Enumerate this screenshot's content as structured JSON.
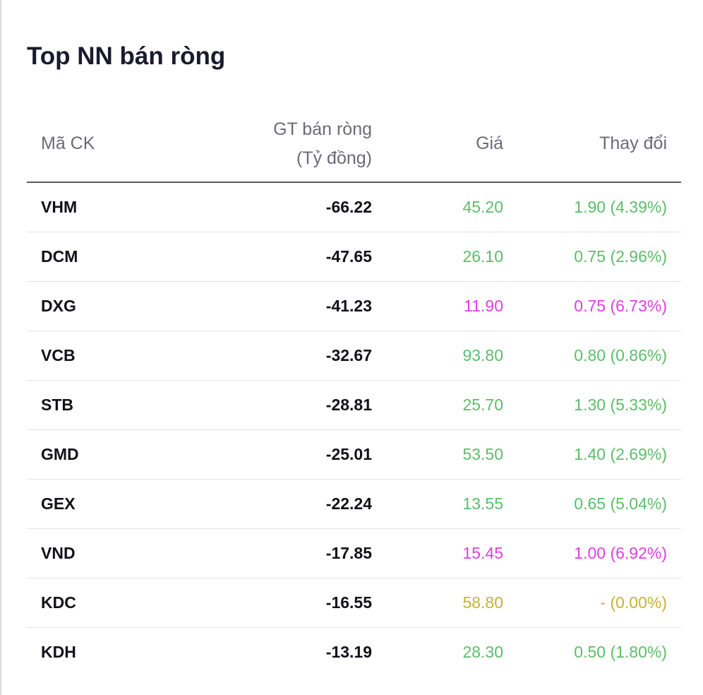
{
  "title": "Top NN bán ròng",
  "columns": {
    "code": "Mã CK",
    "value_line1": "GT bán ròng",
    "value_line2": "(Tỷ đồng)",
    "price": "Giá",
    "change": "Thay đổi"
  },
  "colors": {
    "up": "#5cbd6a",
    "ceiling": "#e03ee3",
    "reference": "#c6b32f"
  },
  "rows": [
    {
      "code": "VHM",
      "value": "-66.22",
      "price": "45.20",
      "change": "1.90 (4.39%)",
      "status": "up"
    },
    {
      "code": "DCM",
      "value": "-47.65",
      "price": "26.10",
      "change": "0.75 (2.96%)",
      "status": "up"
    },
    {
      "code": "DXG",
      "value": "-41.23",
      "price": "11.90",
      "change": "0.75 (6.73%)",
      "status": "ceil"
    },
    {
      "code": "VCB",
      "value": "-32.67",
      "price": "93.80",
      "change": "0.80 (0.86%)",
      "status": "up"
    },
    {
      "code": "STB",
      "value": "-28.81",
      "price": "25.70",
      "change": "1.30 (5.33%)",
      "status": "up"
    },
    {
      "code": "GMD",
      "value": "-25.01",
      "price": "53.50",
      "change": "1.40 (2.69%)",
      "status": "up"
    },
    {
      "code": "GEX",
      "value": "-22.24",
      "price": "13.55",
      "change": "0.65 (5.04%)",
      "status": "up"
    },
    {
      "code": "VND",
      "value": "-17.85",
      "price": "15.45",
      "change": "1.00 (6.92%)",
      "status": "ceil"
    },
    {
      "code": "KDC",
      "value": "-16.55",
      "price": "58.80",
      "change": "- (0.00%)",
      "status": "ref"
    },
    {
      "code": "KDH",
      "value": "-13.19",
      "price": "28.30",
      "change": "0.50 (1.80%)",
      "status": "up"
    }
  ]
}
